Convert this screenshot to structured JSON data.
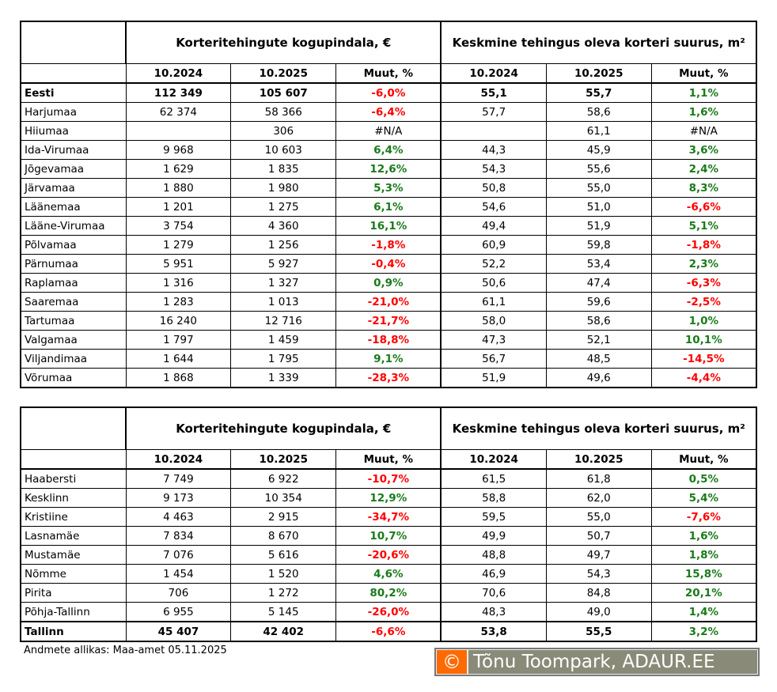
{
  "headers": {
    "group1": "Korteritehingute kogupindala, €",
    "group2": "Keskmine tehingus oleva korteri suurus, m²",
    "cols": [
      "10.2024",
      "10.2025",
      "Muut, %",
      "10.2024",
      "10.2025",
      "Muut, %"
    ]
  },
  "table1": [
    [
      "Eesti",
      "112 349",
      "105 607",
      "-6,0%",
      "55,1",
      "55,7",
      "1,1%"
    ],
    [
      "Harjumaa",
      "62 374",
      "58 366",
      "-6,4%",
      "57,7",
      "58,6",
      "1,6%"
    ],
    [
      "Hiiumaa",
      "",
      "306",
      "#N/A",
      "",
      "61,1",
      "#N/A"
    ],
    [
      "Ida-Virumaa",
      "9 968",
      "10 603",
      "6,4%",
      "44,3",
      "45,9",
      "3,6%"
    ],
    [
      "Jõgevamaa",
      "1 629",
      "1 835",
      "12,6%",
      "54,3",
      "55,6",
      "2,4%"
    ],
    [
      "Järvamaa",
      "1 880",
      "1 980",
      "5,3%",
      "50,8",
      "55,0",
      "8,3%"
    ],
    [
      "Läänemaa",
      "1 201",
      "1 275",
      "6,1%",
      "54,6",
      "51,0",
      "-6,6%"
    ],
    [
      "Lääne-Virumaa",
      "3 754",
      "4 360",
      "16,1%",
      "49,4",
      "51,9",
      "5,1%"
    ],
    [
      "Põlvamaa",
      "1 279",
      "1 256",
      "-1,8%",
      "60,9",
      "59,8",
      "-1,8%"
    ],
    [
      "Pärnumaa",
      "5 951",
      "5 927",
      "-0,4%",
      "52,2",
      "53,4",
      "2,3%"
    ],
    [
      "Raplamaa",
      "1 316",
      "1 327",
      "0,9%",
      "50,6",
      "47,4",
      "-6,3%"
    ],
    [
      "Saaremaa",
      "1 283",
      "1 013",
      "-21,0%",
      "61,1",
      "59,6",
      "-2,5%"
    ],
    [
      "Tartumaa",
      "16 240",
      "12 716",
      "-21,7%",
      "58,0",
      "58,6",
      "1,0%"
    ],
    [
      "Valgamaa",
      "1 797",
      "1 459",
      "-18,8%",
      "47,3",
      "52,1",
      "10,1%"
    ],
    [
      "Viljandimaa",
      "1 644",
      "1 795",
      "9,1%",
      "56,7",
      "48,5",
      "-14,5%"
    ],
    [
      "Võrumaa",
      "1 868",
      "1 339",
      "-28,3%",
      "51,9",
      "49,6",
      "-4,4%"
    ]
  ],
  "table2": [
    [
      "Haabersti",
      "7 749",
      "6 922",
      "-10,7%",
      "61,5",
      "61,8",
      "0,5%"
    ],
    [
      "Kesklinn",
      "9 173",
      "10 354",
      "12,9%",
      "58,8",
      "62,0",
      "5,4%"
    ],
    [
      "Kristiine",
      "4 463",
      "2 915",
      "-34,7%",
      "59,5",
      "55,0",
      "-7,6%"
    ],
    [
      "Lasnamäe",
      "7 834",
      "8 670",
      "10,7%",
      "49,9",
      "50,7",
      "1,6%"
    ],
    [
      "Mustamäe",
      "7 076",
      "5 616",
      "-20,6%",
      "48,8",
      "49,7",
      "1,8%"
    ],
    [
      "Nõmme",
      "1 454",
      "1 520",
      "4,6%",
      "46,9",
      "54,3",
      "15,8%"
    ],
    [
      "Pirita",
      "706",
      "1 272",
      "80,2%",
      "70,6",
      "84,8",
      "20,1%"
    ],
    [
      "Põhja-Tallinn",
      "6 955",
      "5 145",
      "-26,0%",
      "48,3",
      "49,0",
      "1,4%"
    ],
    [
      "Tallinn",
      "45 407",
      "42 402",
      "-6,6%",
      "53,8",
      "55,5",
      "3,2%"
    ]
  ],
  "source": "Andmete allikas: Maa-amet 05.11.2025",
  "logo": {
    "symbol": "©",
    "text": "Tõnu Toompark, ADAUR.EE"
  },
  "colors": {
    "positive": "#1a7a1a",
    "negative": "#ff0000",
    "logo_orange": "#ff6a00",
    "logo_gray": "#8a8a78"
  }
}
